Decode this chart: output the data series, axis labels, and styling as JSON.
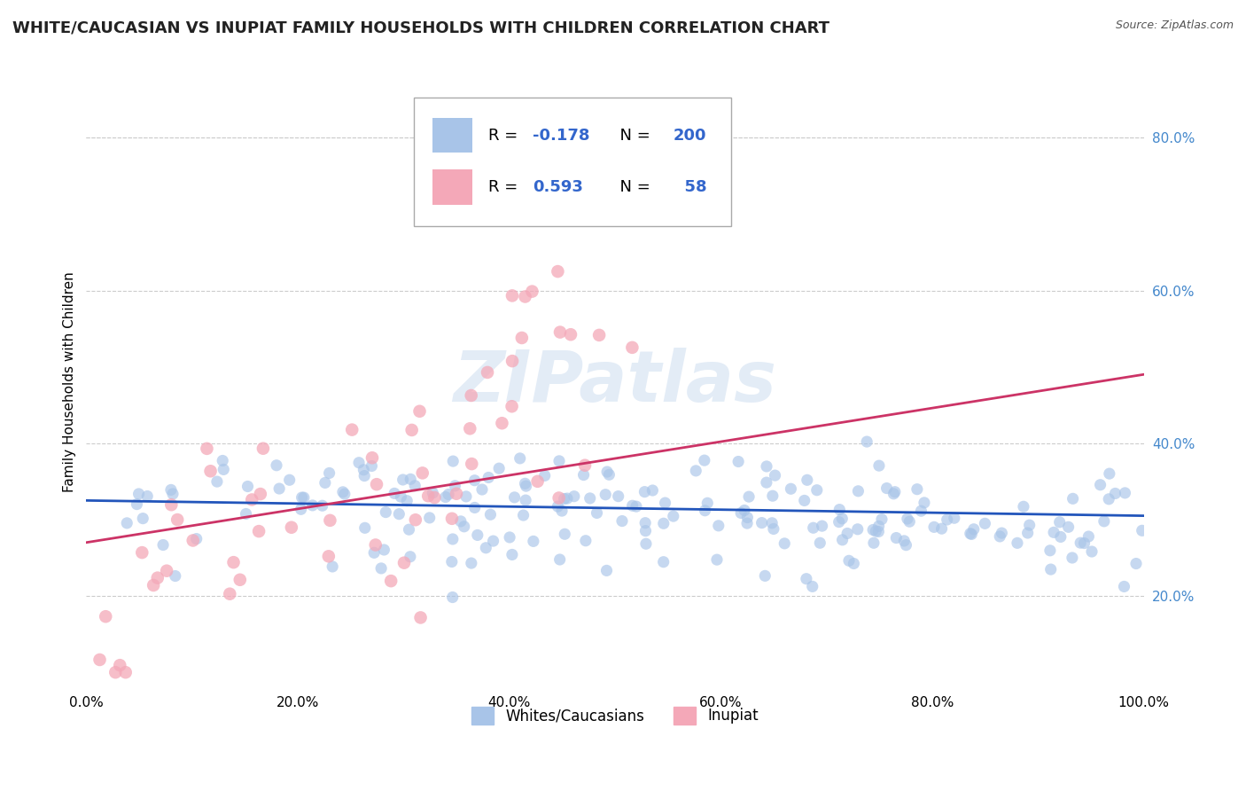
{
  "title": "WHITE/CAUCASIAN VS INUPIAT FAMILY HOUSEHOLDS WITH CHILDREN CORRELATION CHART",
  "source_text": "Source: ZipAtlas.com",
  "ylabel": "Family Households with Children",
  "watermark": "ZIPatlas",
  "xlim": [
    0,
    1.0
  ],
  "ylim": [
    0.08,
    0.88
  ],
  "blue_R": -0.178,
  "blue_N": 200,
  "pink_R": 0.593,
  "pink_N": 58,
  "blue_color": "#a8c4e8",
  "pink_color": "#f4a8b8",
  "blue_line_color": "#2255bb",
  "pink_line_color": "#cc3366",
  "title_fontsize": 13,
  "axis_label_fontsize": 11,
  "tick_fontsize": 11,
  "background_color": "#ffffff",
  "grid_color": "#cccccc",
  "yticks": [
    0.2,
    0.4,
    0.6,
    0.8
  ],
  "ytick_labels": [
    "20.0%",
    "40.0%",
    "60.0%",
    "80.0%"
  ],
  "xticks": [
    0.0,
    0.2,
    0.4,
    0.6,
    0.8,
    1.0
  ],
  "xtick_labels": [
    "0.0%",
    "20.0%",
    "40.0%",
    "60.0%",
    "80.0%",
    "100.0%"
  ],
  "blue_intercept": 0.325,
  "blue_slope": -0.02,
  "pink_intercept": 0.27,
  "pink_slope": 0.22
}
